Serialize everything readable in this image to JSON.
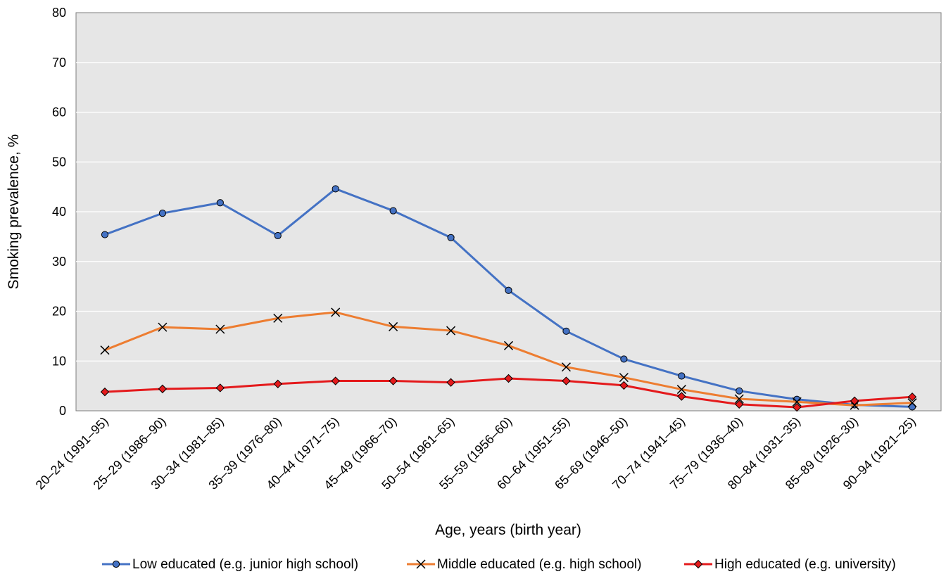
{
  "chart_data": {
    "type": "line",
    "title": "",
    "xlabel": "Age, years (birth year)",
    "ylabel": "Smoking prevalence, %",
    "ylim": [
      0,
      80
    ],
    "yticks": [
      "0",
      "10",
      "20",
      "30",
      "40",
      "50",
      "60",
      "70",
      "80"
    ],
    "grid": true,
    "legend_position": "bottom",
    "categories": [
      "20–24 (1991–95)",
      "25–29 (1986–90)",
      "30–34 (1981–85)",
      "35–39 (1976–80)",
      "40–44 (1971–75)",
      "45–49 (1966–70)",
      "50–54 (1961–65)",
      "55–59 (1956–60)",
      "60–64 (1951–55)",
      "65–69 (1946–50)",
      "70–74 (1941–45)",
      "75–79 (1936–40)",
      "80–84 (1931–35)",
      "85–89 (1926–30)",
      "90–94 (1921–25)"
    ],
    "series": [
      {
        "name": "Low educated (e.g. junior high school)",
        "color": "#4472C4",
        "marker": "circle",
        "values": [
          35.4,
          39.7,
          41.8,
          35.2,
          44.6,
          40.2,
          34.8,
          24.2,
          16.0,
          10.4,
          7.0,
          4.0,
          2.3,
          1.2,
          0.8
        ]
      },
      {
        "name": "Middle educated (e.g. high school)",
        "color": "#ED7D31",
        "marker": "x",
        "values": [
          12.2,
          16.8,
          16.4,
          18.6,
          19.8,
          16.9,
          16.1,
          13.1,
          8.8,
          6.7,
          4.3,
          2.4,
          1.8,
          1.1,
          1.6
        ]
      },
      {
        "name": "High educated (e.g. university)",
        "color": "#E41A1C",
        "marker": "diamond",
        "values": [
          3.8,
          4.4,
          4.6,
          5.4,
          6.0,
          6.0,
          5.7,
          6.5,
          6.0,
          5.1,
          2.9,
          1.3,
          0.7,
          2.0,
          2.8
        ]
      }
    ]
  }
}
